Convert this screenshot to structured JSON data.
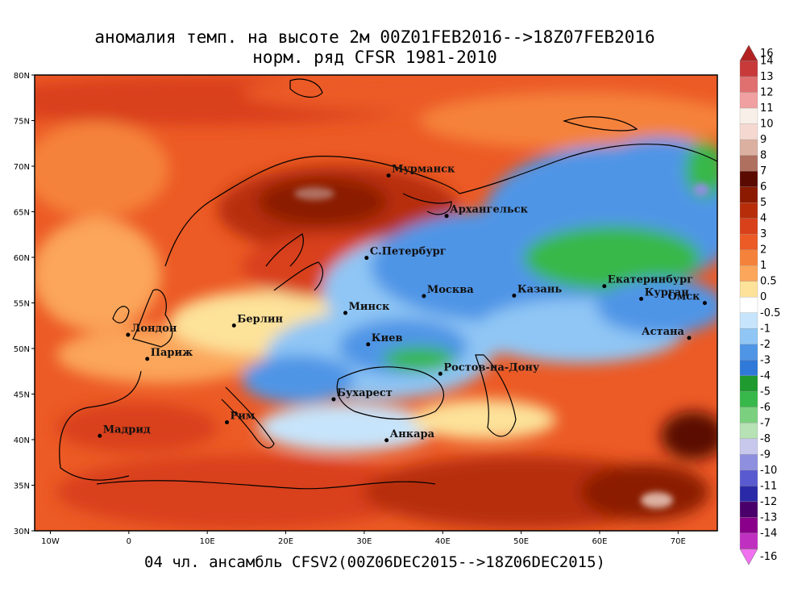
{
  "title_line1": "аномалия темп. на высоте 2м 00Z01FEB2016-->18Z07FEB2016",
  "title_line2": "норм. ряд CFSR 1981-2010",
  "footer": "04 чл. ансамбль CFSV2(00Z06DEC2015-->18Z06DEC2015)",
  "lat_ticks": [
    "80N",
    "75N",
    "70N",
    "65N",
    "60N",
    "55N",
    "50N",
    "45N",
    "40N",
    "35N",
    "30N"
  ],
  "lon_ticks": [
    "10W",
    "0",
    "10E",
    "20E",
    "30E",
    "40E",
    "50E",
    "60E",
    "70E"
  ],
  "legend": {
    "labels": [
      "16",
      "14",
      "13",
      "12",
      "11",
      "10",
      "9",
      "8",
      "7",
      "6",
      "5",
      "4",
      "3",
      "2",
      "1",
      "0.5",
      "0",
      "-0.5",
      "-1",
      "-2",
      "-3",
      "-4",
      "-5",
      "-6",
      "-7",
      "-8",
      "-9",
      "-10",
      "-11",
      "-12",
      "-13",
      "-14",
      "-16"
    ],
    "colors": [
      "#b22222",
      "#c83a3a",
      "#e07070",
      "#f0a0a0",
      "#f8f0e8",
      "#f5d9d0",
      "#dcb0a0",
      "#b07060",
      "#5a0a00",
      "#8b1a00",
      "#b72d0a",
      "#d9411a",
      "#ec5a25",
      "#f5823a",
      "#fba65a",
      "#fde29a",
      "#ffffff",
      "#c6e4fb",
      "#8fc6f5",
      "#4f95e6",
      "#2f7ad8",
      "#1f9a2f",
      "#37b84a",
      "#7ad07e",
      "#b6e2b6",
      "#c8c8ec",
      "#8f8fe0",
      "#5a5ad0",
      "#2a2aa8",
      "#4a006a",
      "#8a008a",
      "#c030c0",
      "#f070f0"
    ]
  },
  "cities": [
    {
      "name": "Мурманск",
      "lon": 33.1,
      "lat": 68.97
    },
    {
      "name": "Архангельск",
      "lon": 40.5,
      "lat": 64.54
    },
    {
      "name": "С.Петербург",
      "lon": 30.3,
      "lat": 59.94
    },
    {
      "name": "Москва",
      "lon": 37.6,
      "lat": 55.75
    },
    {
      "name": "Казань",
      "lon": 49.1,
      "lat": 55.8
    },
    {
      "name": "Екатеринбург",
      "lon": 60.6,
      "lat": 56.84
    },
    {
      "name": "Курган",
      "lon": 65.3,
      "lat": 55.44
    },
    {
      "name": "Омск",
      "lon": 73.4,
      "lat": 54.99
    },
    {
      "name": "Астана",
      "lon": 71.4,
      "lat": 51.16
    },
    {
      "name": "Минск",
      "lon": 27.6,
      "lat": 53.9
    },
    {
      "name": "Берлин",
      "lon": 13.4,
      "lat": 52.52
    },
    {
      "name": "Лондон",
      "lon": -0.1,
      "lat": 51.5
    },
    {
      "name": "Париж",
      "lon": 2.35,
      "lat": 48.86
    },
    {
      "name": "Киев",
      "lon": 30.5,
      "lat": 50.45
    },
    {
      "name": "Ростов-на-Дону",
      "lon": 39.7,
      "lat": 47.23
    },
    {
      "name": "Бухарест",
      "lon": 26.1,
      "lat": 44.43
    },
    {
      "name": "Рим",
      "lon": 12.5,
      "lat": 41.9
    },
    {
      "name": "Мадрид",
      "lon": -3.7,
      "lat": 40.42
    },
    {
      "name": "Анкара",
      "lon": 32.85,
      "lat": 39.93
    }
  ]
}
